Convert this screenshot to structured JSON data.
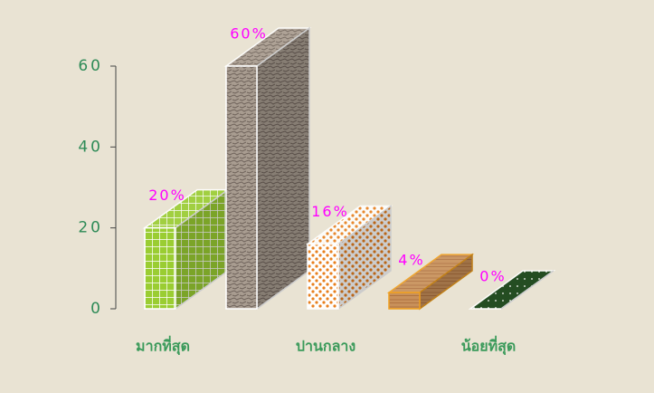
{
  "chart_data": {
    "type": "bar3d",
    "categories": [
      "มากที่สุด",
      null,
      "ปานกลาง",
      null,
      "น้อยที่สุด"
    ],
    "values": [
      20,
      60,
      16,
      4,
      0
    ],
    "value_labels": [
      "20%",
      "60%",
      "16%",
      "4%",
      "0%"
    ],
    "colors": [
      "#9acd32",
      "#a89c90",
      "#e8801e",
      "#c8905a",
      "#0f3d0f"
    ],
    "ylim": [
      0,
      60
    ],
    "yticks": [
      0,
      20,
      40,
      60
    ]
  }
}
